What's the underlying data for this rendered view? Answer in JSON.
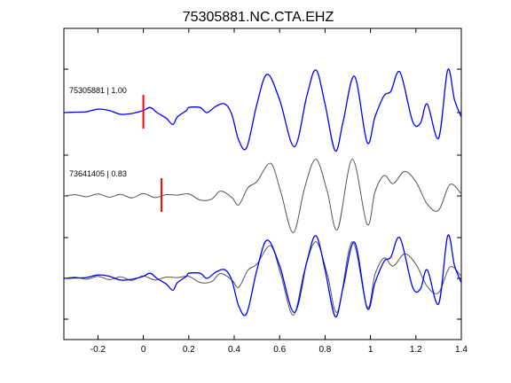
{
  "chart_data": {
    "type": "line",
    "title": "75305881.NC.CTA.EHZ",
    "xlim": [
      -0.35,
      1.4
    ],
    "x_ticks": [
      -0.2,
      0,
      0.2,
      0.4,
      0.6,
      0.8,
      1,
      1.2,
      1.4
    ],
    "x_tick_labels": [
      "-0.2",
      "0",
      "0.2",
      "0.4",
      "0.6",
      "0.8",
      "1",
      "1.2",
      "1.4"
    ],
    "grid": false,
    "colors": {
      "primary_trace": "#0000ff",
      "secondary_trace": "#555555",
      "pick_marker": "#ff0000",
      "axes": "#000000"
    },
    "traces": [
      {
        "label": "75305881 | 1.00",
        "color": "#0000ff",
        "pick_time": 0.0,
        "x": [
          -0.35,
          -0.3,
          -0.25,
          -0.2,
          -0.15,
          -0.1,
          -0.05,
          0.0,
          0.03,
          0.06,
          0.1,
          0.13,
          0.15,
          0.19,
          0.2,
          0.25,
          0.28,
          0.32,
          0.36,
          0.39,
          0.42,
          0.455,
          0.5,
          0.545,
          0.6,
          0.665,
          0.72,
          0.76,
          0.8,
          0.845,
          0.88,
          0.93,
          0.985,
          1.02,
          1.06,
          1.09,
          1.13,
          1.185,
          1.22,
          1.25,
          1.3,
          1.34,
          1.37,
          1.4
        ],
        "y": [
          0.0,
          0.01,
          0.02,
          0.08,
          0.05,
          -0.04,
          -0.02,
          0.05,
          0.12,
          0.0,
          -0.13,
          -0.28,
          -0.1,
          0.05,
          0.12,
          0.12,
          0.0,
          0.15,
          0.2,
          -0.05,
          -0.65,
          -0.82,
          0.2,
          0.9,
          0.3,
          -0.8,
          0.4,
          1.0,
          0.2,
          -0.9,
          -0.2,
          0.85,
          -0.7,
          -0.1,
          0.4,
          0.5,
          0.95,
          -0.2,
          -0.25,
          0.2,
          -0.6,
          1.0,
          0.3,
          -0.1
        ]
      },
      {
        "label": "73641405 | 0.83",
        "color": "#555555",
        "pick_time": 0.08,
        "x": [
          -0.35,
          -0.3,
          -0.25,
          -0.2,
          -0.15,
          -0.1,
          -0.05,
          0.0,
          0.05,
          0.1,
          0.15,
          0.2,
          0.25,
          0.3,
          0.34,
          0.39,
          0.42,
          0.46,
          0.5,
          0.56,
          0.605,
          0.66,
          0.71,
          0.76,
          0.81,
          0.855,
          0.92,
          0.985,
          1.02,
          1.06,
          1.1,
          1.15,
          1.2,
          1.25,
          1.3,
          1.35,
          1.4
        ],
        "y": [
          0.0,
          0.03,
          -0.02,
          0.05,
          -0.03,
          0.04,
          -0.05,
          0.06,
          -0.04,
          0.03,
          0.02,
          0.05,
          -0.1,
          -0.08,
          0.12,
          -0.04,
          -0.22,
          0.2,
          0.35,
          0.8,
          0.1,
          -0.9,
          0.2,
          0.9,
          0.1,
          -0.82,
          0.9,
          -0.7,
          0.1,
          0.5,
          0.3,
          0.6,
          0.35,
          -0.2,
          -0.35,
          0.28,
          0.05
        ]
      },
      {
        "label": "",
        "color": "#0000ff",
        "overlay": true,
        "x": [
          -0.35,
          -0.3,
          -0.25,
          -0.2,
          -0.15,
          -0.1,
          -0.05,
          0.0,
          0.03,
          0.06,
          0.1,
          0.13,
          0.15,
          0.19,
          0.2,
          0.25,
          0.28,
          0.32,
          0.36,
          0.39,
          0.42,
          0.455,
          0.5,
          0.545,
          0.6,
          0.665,
          0.72,
          0.76,
          0.8,
          0.845,
          0.88,
          0.93,
          0.985,
          1.02,
          1.06,
          1.09,
          1.13,
          1.185,
          1.22,
          1.25,
          1.3,
          1.34,
          1.37,
          1.4
        ],
        "y": [
          0.0,
          0.01,
          0.02,
          0.08,
          0.05,
          -0.04,
          -0.02,
          0.05,
          0.12,
          0.0,
          -0.13,
          -0.28,
          -0.1,
          0.05,
          0.12,
          0.12,
          0.0,
          0.15,
          0.2,
          -0.05,
          -0.65,
          -0.82,
          0.2,
          0.9,
          0.3,
          -0.8,
          0.4,
          1.0,
          0.2,
          -0.9,
          -0.2,
          0.85,
          -0.7,
          -0.1,
          0.4,
          0.5,
          0.95,
          -0.2,
          -0.25,
          0.2,
          -0.6,
          1.0,
          0.3,
          -0.1
        ]
      },
      {
        "label": "",
        "color": "#555555",
        "overlay": true,
        "x": [
          -0.35,
          -0.3,
          -0.25,
          -0.2,
          -0.15,
          -0.1,
          -0.05,
          0.0,
          0.05,
          0.1,
          0.15,
          0.2,
          0.25,
          0.3,
          0.34,
          0.39,
          0.42,
          0.46,
          0.5,
          0.56,
          0.605,
          0.66,
          0.71,
          0.76,
          0.81,
          0.855,
          0.92,
          0.985,
          1.02,
          1.06,
          1.1,
          1.15,
          1.2,
          1.25,
          1.3,
          1.35,
          1.4
        ],
        "y": [
          0.0,
          0.03,
          -0.02,
          0.05,
          -0.03,
          0.04,
          -0.05,
          0.06,
          -0.04,
          0.03,
          0.02,
          0.05,
          -0.1,
          -0.08,
          0.12,
          -0.04,
          -0.22,
          0.2,
          0.35,
          0.8,
          0.1,
          -0.9,
          0.2,
          0.9,
          0.1,
          -0.82,
          0.9,
          -0.7,
          0.1,
          0.5,
          0.3,
          0.6,
          0.35,
          -0.2,
          -0.35,
          0.28,
          0.05
        ]
      }
    ]
  }
}
